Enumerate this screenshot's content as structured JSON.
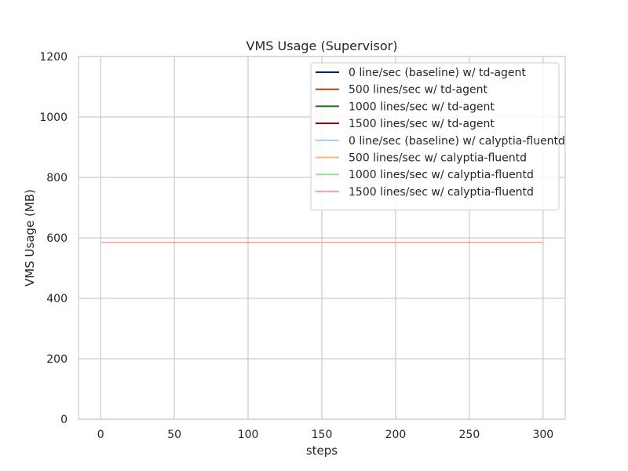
{
  "chart_data": {
    "type": "line",
    "title": "VMS Usage (Supervisor)",
    "xlabel": "steps",
    "ylabel": "VMS Usage (MB)",
    "xlim": [
      -15,
      315
    ],
    "ylim": [
      0,
      1200
    ],
    "xticks": [
      0,
      50,
      100,
      150,
      200,
      250,
      300
    ],
    "yticks": [
      0,
      200,
      400,
      600,
      800,
      1000,
      1200
    ],
    "grid": true,
    "legend_position": "top-right",
    "x": [
      0,
      300
    ],
    "series": [
      {
        "name": "0 line/sec (baseline) w/ td-agent",
        "color": "#001c7f",
        "values": [
          585,
          585
        ]
      },
      {
        "name": "500 lines/sec w/ td-agent",
        "color": "#b1400d",
        "values": [
          585,
          585
        ]
      },
      {
        "name": "1000 lines/sec w/ td-agent",
        "color": "#12711c",
        "values": [
          585,
          585
        ]
      },
      {
        "name": "1500 lines/sec w/ td-agent",
        "color": "#8c0800",
        "values": [
          585,
          585
        ]
      },
      {
        "name": "0 line/sec (baseline) w/ calyptia-fluentd",
        "color": "#a1c9f4",
        "values": [
          585,
          585
        ]
      },
      {
        "name": "500 lines/sec w/ calyptia-fluentd",
        "color": "#ffb482",
        "values": [
          585,
          585
        ]
      },
      {
        "name": "1000 lines/sec w/ calyptia-fluentd",
        "color": "#8de5a1",
        "values": [
          585,
          585
        ]
      },
      {
        "name": "1500 lines/sec w/ calyptia-fluentd",
        "color": "#ff9f9b",
        "values": [
          585,
          585
        ]
      }
    ]
  }
}
